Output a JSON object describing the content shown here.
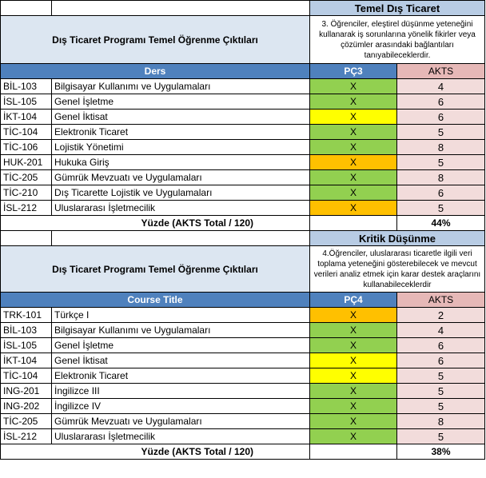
{
  "section1": {
    "banner": "Temel Dış Ticaret",
    "program_title": "Dış Ticaret Programı Temel Öğrenme Çıktıları",
    "outcome_text": "3. Öğrenciler,  eleştirel düşünme yeteneğini kullanarak iş sorunlarına yönelik fikirler veya çözümler arasındaki bağlantıları tanıyabileceklerdir.",
    "course_header": "Ders",
    "pc_header": "PÇ3",
    "akts_header": "AKTS",
    "rows": [
      {
        "code": "BİL-103",
        "name": "Bilgisayar Kullanımı ve Uygulamaları",
        "mark": "X",
        "level": "green",
        "akts": "4"
      },
      {
        "code": "İSL-105",
        "name": "Genel İşletme",
        "mark": "X",
        "level": "green",
        "akts": "6"
      },
      {
        "code": "İKT-104",
        "name": "Genel İktisat",
        "mark": "X",
        "level": "yellow",
        "akts": "6"
      },
      {
        "code": "TİC-104",
        "name": "Elektronik Ticaret",
        "mark": "X",
        "level": "green",
        "akts": "5"
      },
      {
        "code": "TİC-106",
        "name": "Lojistik Yönetimi",
        "mark": "X",
        "level": "green",
        "akts": "8"
      },
      {
        "code": "HUK-201",
        "name": "Hukuka Giriş",
        "mark": "X",
        "level": "orange",
        "akts": "5"
      },
      {
        "code": "TİC-205",
        "name": "Gümrük Mevzuatı ve Uygulamaları",
        "mark": "X",
        "level": "green",
        "akts": "8"
      },
      {
        "code": "TİC-210",
        "name": "Dış Ticarette Lojistik ve Uygulamaları",
        "mark": "X",
        "level": "green",
        "akts": "6"
      },
      {
        "code": "İSL-212",
        "name": "Uluslararası İşletmecilik",
        "mark": "X",
        "level": "orange",
        "akts": "5"
      }
    ],
    "total_label": "Yüzde (AKTS Total / 120)",
    "total_value": "44%"
  },
  "section2": {
    "banner": "Kritik Düşünme",
    "program_title": "Dış Ticaret Programı Temel Öğrenme Çıktıları",
    "outcome_text": "4.Öğrenciler, uluslararası ticaretle ilgili veri toplama yeteneğini gösterebilecek ve mevcut verileri analiz etmek için karar destek araçlarını kullanabileceklerdir",
    "course_header": "Course Title",
    "pc_header": "PÇ4",
    "akts_header": "AKTS",
    "rows": [
      {
        "code": "TRK-101",
        "name": "Türkçe I",
        "mark": "X",
        "level": "orange",
        "akts": "2"
      },
      {
        "code": "BİL-103",
        "name": "Bilgisayar Kullanımı ve Uygulamaları",
        "mark": "X",
        "level": "green",
        "akts": "4"
      },
      {
        "code": "İSL-105",
        "name": "Genel İşletme",
        "mark": "X",
        "level": "green",
        "akts": "6"
      },
      {
        "code": "İKT-104",
        "name": "Genel İktisat",
        "mark": "X",
        "level": "yellow",
        "akts": "6"
      },
      {
        "code": "TİC-104",
        "name": "Elektronik Ticaret",
        "mark": "X",
        "level": "yellow",
        "akts": "5"
      },
      {
        "code": "ING-201",
        "name": "İngilizce III",
        "mark": "X",
        "level": "green",
        "akts": "5"
      },
      {
        "code": "ING-202",
        "name": "İngilizce IV",
        "mark": "X",
        "level": "green",
        "akts": "5"
      },
      {
        "code": "TİC-205",
        "name": "Gümrük Mevzuatı ve Uygulamaları",
        "mark": "X",
        "level": "green",
        "akts": "8"
      },
      {
        "code": "İSL-212",
        "name": "Uluslararası İşletmecilik",
        "mark": "X",
        "level": "green",
        "akts": "5"
      }
    ],
    "total_label": "Yüzde (AKTS Total / 120)",
    "total_value": "38%"
  },
  "colors": {
    "header_blue": "#4f81bd",
    "banner_blue": "#b8cce4",
    "title_blue": "#dce6f1",
    "green": "#92d050",
    "yellow": "#ffff00",
    "orange": "#ffc000",
    "akts_pink": "#f2dcdb",
    "akts_header_pink": "#e6b8b7"
  }
}
